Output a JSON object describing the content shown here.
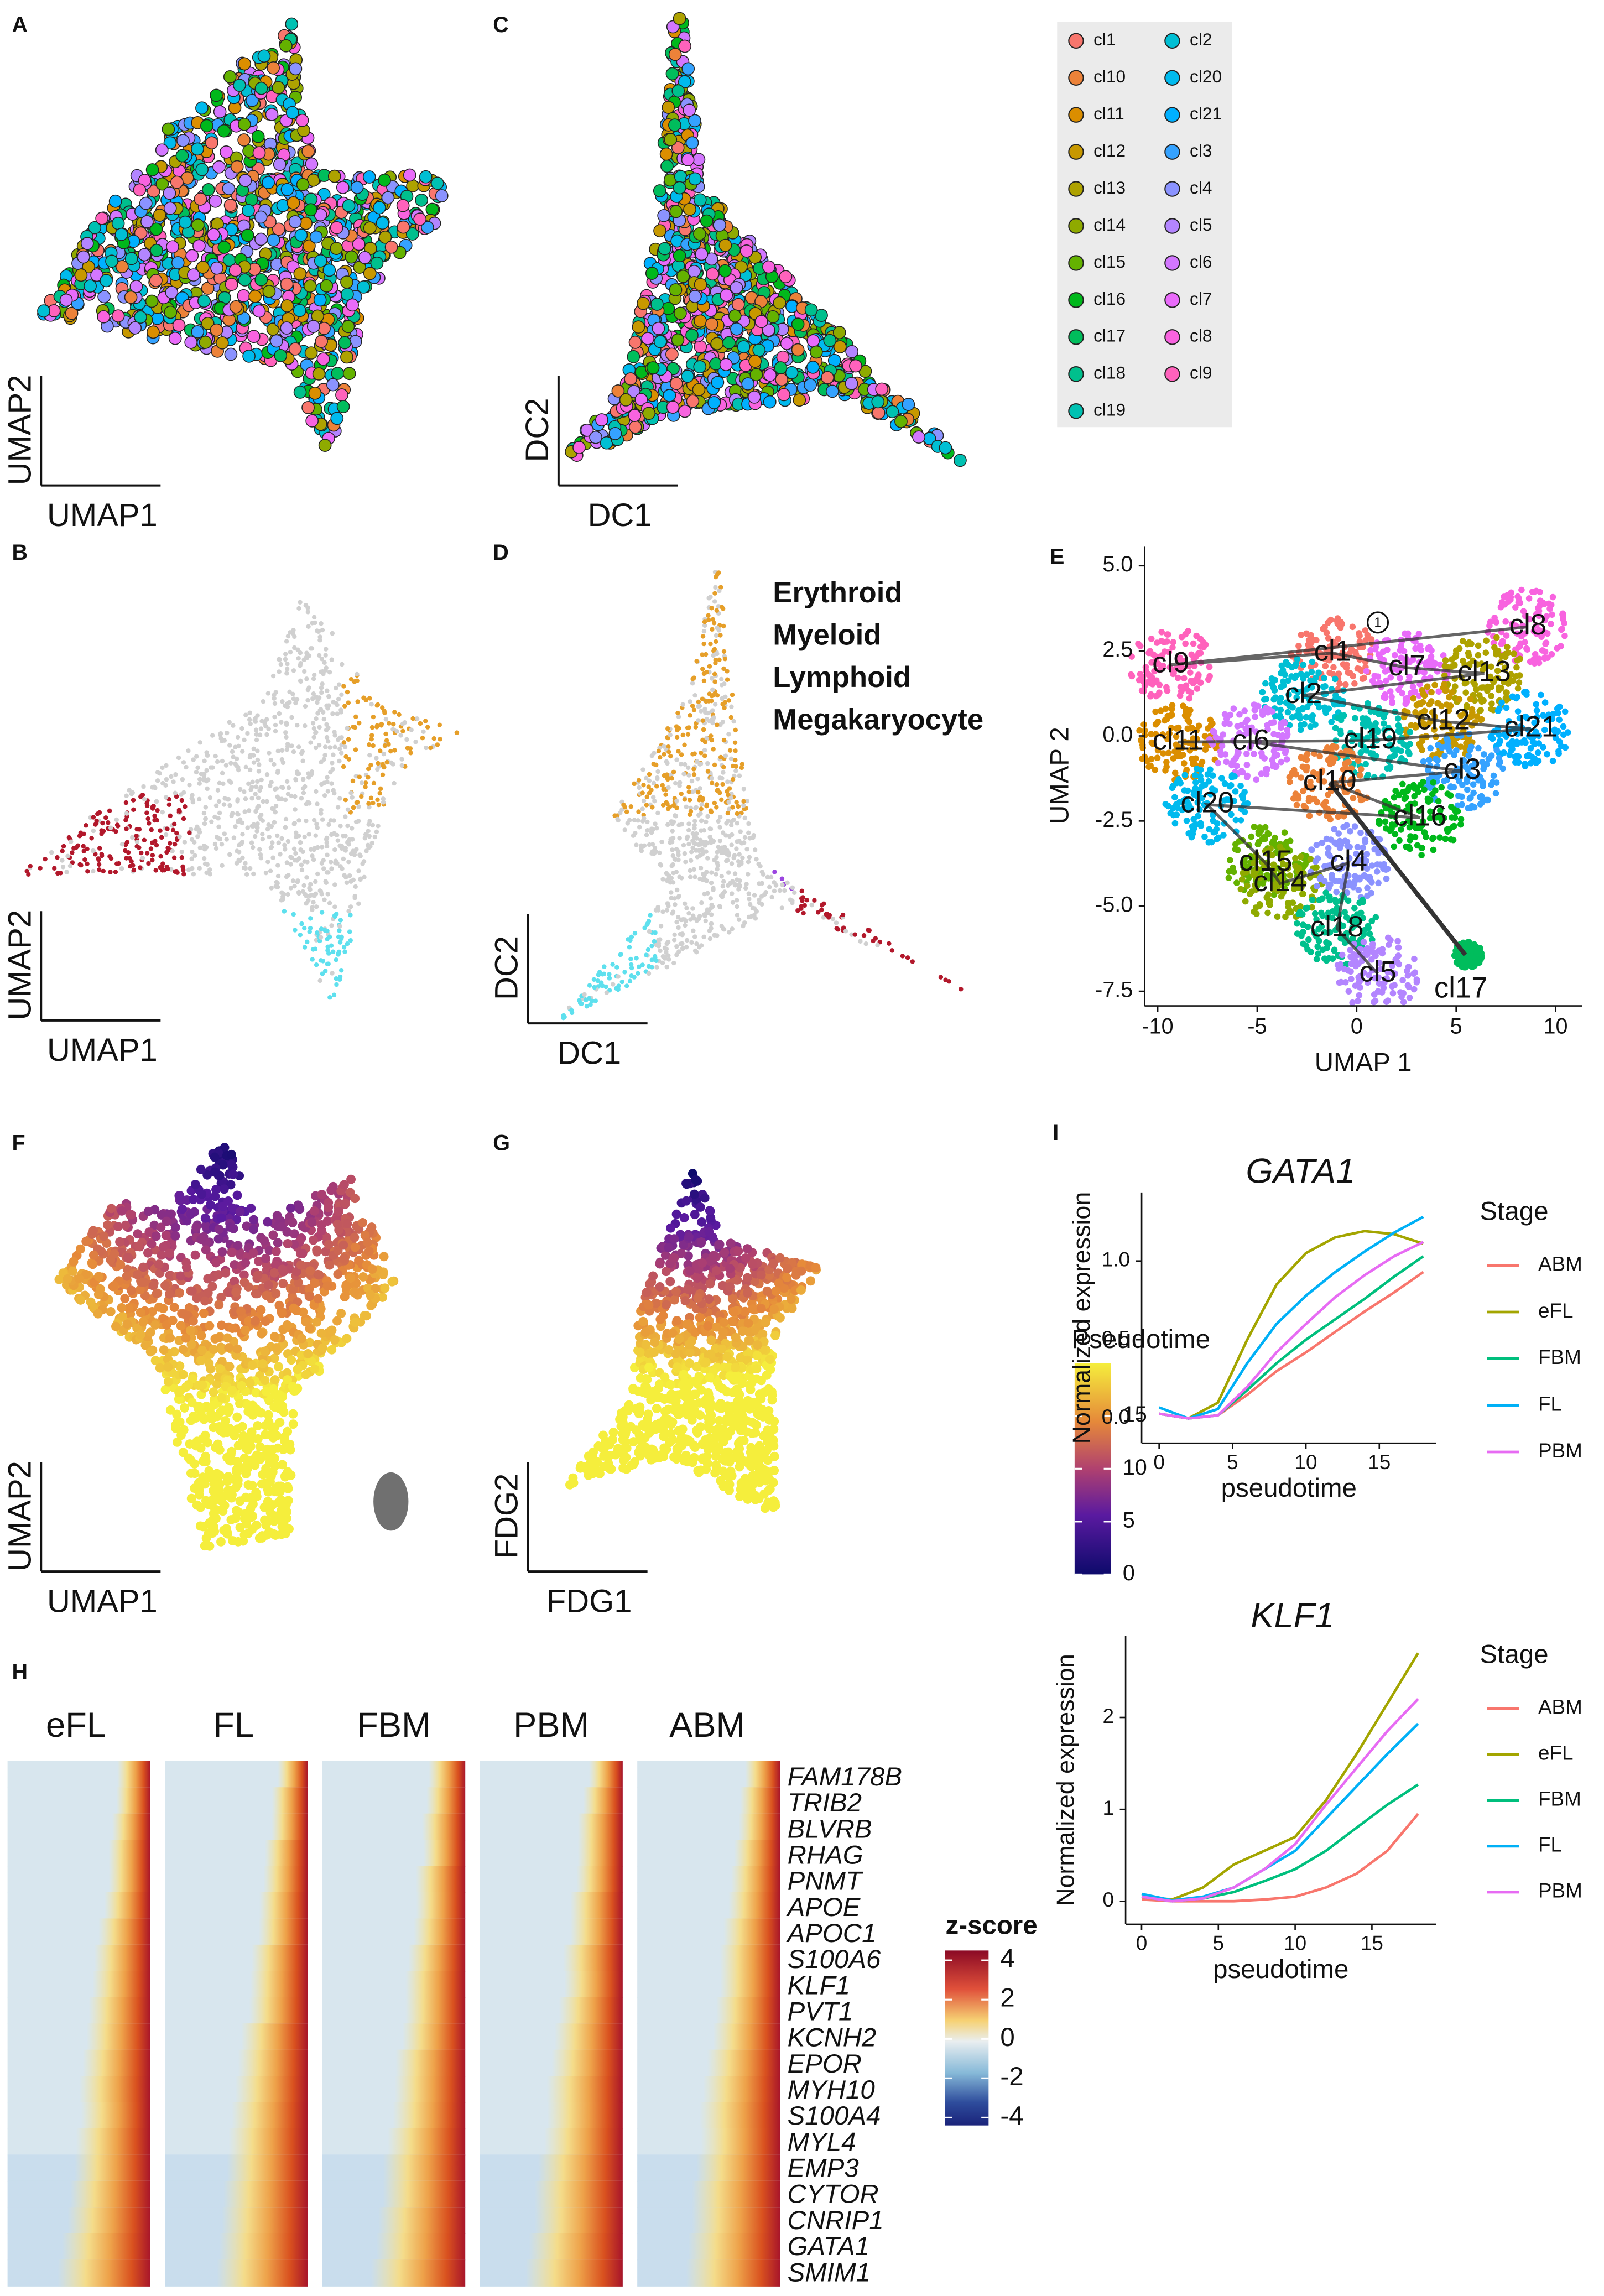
{
  "chart_data": [
    {
      "type": "scatter",
      "panel": "A",
      "xlabel": "UMAP1",
      "ylabel": "UMAP2"
    },
    {
      "type": "scatter",
      "panel": "C",
      "xlabel": "DC1",
      "ylabel": "DC2",
      "legend": [
        {
          "name": "cl1",
          "color": "#F8766D"
        },
        {
          "name": "cl10",
          "color": "#EC8239"
        },
        {
          "name": "cl11",
          "color": "#DB8E00"
        },
        {
          "name": "cl12",
          "color": "#C79800"
        },
        {
          "name": "cl13",
          "color": "#AEA200"
        },
        {
          "name": "cl14",
          "color": "#8FAA00"
        },
        {
          "name": "cl15",
          "color": "#64B200"
        },
        {
          "name": "cl16",
          "color": "#00B81B"
        },
        {
          "name": "cl17",
          "color": "#00BD5C"
        },
        {
          "name": "cl18",
          "color": "#00C08D"
        },
        {
          "name": "cl19",
          "color": "#00C1B2"
        },
        {
          "name": "cl2",
          "color": "#00BFD4"
        },
        {
          "name": "cl20",
          "color": "#00BAEE"
        },
        {
          "name": "cl21",
          "color": "#00B0FF"
        },
        {
          "name": "cl3",
          "color": "#35A2FF"
        },
        {
          "name": "cl4",
          "color": "#8B93FF"
        },
        {
          "name": "cl5",
          "color": "#B385FF"
        },
        {
          "name": "cl6",
          "color": "#D377FF"
        },
        {
          "name": "cl7",
          "color": "#E96BFA"
        },
        {
          "name": "cl8",
          "color": "#F863DF"
        },
        {
          "name": "cl9",
          "color": "#FF62BC"
        }
      ]
    },
    {
      "type": "scatter",
      "panel": "B",
      "xlabel": "UMAP1",
      "ylabel": "UMAP2"
    },
    {
      "type": "scatter",
      "panel": "D",
      "xlabel": "DC1",
      "ylabel": "DC2",
      "legend": [
        {
          "name": "Erythroid",
          "color": "#B2182B"
        },
        {
          "name": "Myeloid",
          "color": "#5EE0EE"
        },
        {
          "name": "Lymphoid",
          "color": "#E69F29"
        },
        {
          "name": "Megakaryocyte",
          "color": "#9B45E0"
        }
      ]
    },
    {
      "type": "scatter",
      "panel": "E",
      "xlabel": "UMAP 1",
      "ylabel": "UMAP 2",
      "xlim": [
        -10.66,
        11.32
      ],
      "ylim": [
        -7.93,
        5.56
      ],
      "xticks": [
        -10,
        -5,
        0,
        5,
        10
      ],
      "yticks": [
        -7.5,
        {
          "value": -5,
          "label": "-5.0"
        },
        -2.5,
        {
          "value": 0,
          "label": "0.0"
        },
        2.5,
        {
          "value": 5,
          "label": "5.0"
        }
      ],
      "annotations": [
        "cl8",
        "cl9",
        "cl1",
        "cl7",
        "cl13",
        "cl2",
        "cl12",
        "cl21",
        "cl19",
        "cl11",
        "cl6",
        "cl3",
        "cl10",
        "cl16",
        "cl20",
        "cl15",
        "cl14",
        "cl4",
        "cl18",
        "cl5",
        "cl17"
      ],
      "root_label": "1"
    },
    {
      "type": "scatter",
      "panel": "F",
      "xlabel": "UMAP1",
      "ylabel": "UMAP2"
    },
    {
      "type": "scatter",
      "panel": "G",
      "xlabel": "FDG1",
      "ylabel": "FDG2",
      "colorbar": {
        "title": "Pseudotime",
        "lim": [
          0,
          20
        ],
        "ticks": [
          0,
          5,
          10,
          15
        ]
      }
    },
    {
      "type": "heatmap",
      "panel": "H",
      "columns": [
        "eFL",
        "FL",
        "FBM",
        "PBM",
        "ABM"
      ],
      "rows": [
        "FAM178B",
        "TRIB2",
        "BLVRB",
        "RHAG",
        "PNMT",
        "APOE",
        "APOC1",
        "S100A6",
        "KLF1",
        "PVT1",
        "KCNH2",
        "EPOR",
        "MYH10",
        "S100A4",
        "MYL4",
        "EMP3",
        "CYTOR",
        "CNRIP1",
        "GATA1",
        "SMIM1"
      ],
      "colorbar": {
        "title": "z-score",
        "lim": [
          -4.4,
          4.5
        ],
        "ticks": [
          4,
          2,
          0,
          -2,
          -4
        ]
      }
    },
    {
      "type": "line",
      "panel": "I",
      "title": "GATA1",
      "xlabel": "pseudotime",
      "ylabel": "Normalized expression",
      "legend_title": "Stage",
      "x": [
        0,
        2,
        4,
        6,
        8,
        10,
        12,
        14,
        16,
        18
      ],
      "xlim": [
        -1.19,
        18.87
      ],
      "ylim": [
        -0.157,
        1.435
      ],
      "xticks": [
        0,
        5,
        10,
        15
      ],
      "yticks": [
        {
          "value": 0,
          "label": "0.0"
        },
        0.5,
        {
          "value": 1,
          "label": "1.0"
        }
      ],
      "series": [
        {
          "name": "ABM",
          "color": "#F8766D",
          "values": [
            0.03,
            0,
            0.02,
            0.15,
            0.3,
            0.42,
            0.55,
            0.68,
            0.8,
            0.93
          ]
        },
        {
          "name": "eFL",
          "color": "#A3A500",
          "values": [
            0.03,
            0,
            0.1,
            0.5,
            0.85,
            1.05,
            1.15,
            1.19,
            1.17,
            1.11
          ]
        },
        {
          "name": "FBM",
          "color": "#00BF7D",
          "values": [
            0.03,
            0,
            0.02,
            0.18,
            0.35,
            0.5,
            0.63,
            0.76,
            0.9,
            1.03
          ]
        },
        {
          "name": "FL",
          "color": "#00B0F6",
          "values": [
            0.07,
            0,
            0.06,
            0.35,
            0.6,
            0.78,
            0.93,
            1.06,
            1.18,
            1.28
          ]
        },
        {
          "name": "PBM",
          "color": "#E76BF3",
          "values": [
            0.03,
            0,
            0.02,
            0.2,
            0.42,
            0.6,
            0.77,
            0.91,
            1.03,
            1.12
          ]
        }
      ]
    },
    {
      "type": "line",
      "title": "KLF1",
      "xlabel": "pseudotime",
      "ylabel": "Normalized expression",
      "legend_title": "Stage",
      "x": [
        0,
        2,
        4,
        6,
        8,
        10,
        12,
        14,
        16,
        18
      ],
      "xlim": [
        -1.04,
        19.18
      ],
      "ylim": [
        -0.25,
        2.89
      ],
      "xticks": [
        0,
        5,
        10,
        15
      ],
      "yticks": [
        0,
        1,
        2
      ],
      "series": [
        {
          "name": "ABM",
          "color": "#F8766D",
          "values": [
            0.02,
            0,
            0,
            0,
            0.02,
            0.05,
            0.15,
            0.3,
            0.55,
            0.95
          ]
        },
        {
          "name": "eFL",
          "color": "#A3A500",
          "values": [
            0.05,
            0.02,
            0.15,
            0.4,
            0.55,
            0.7,
            1.1,
            1.6,
            2.15,
            2.7
          ]
        },
        {
          "name": "FBM",
          "color": "#00BF7D",
          "values": [
            0.05,
            0,
            0.03,
            0.1,
            0.22,
            0.35,
            0.55,
            0.8,
            1.05,
            1.27
          ]
        },
        {
          "name": "FL",
          "color": "#00B0F6",
          "values": [
            0.08,
            0.01,
            0.05,
            0.15,
            0.35,
            0.55,
            0.9,
            1.25,
            1.6,
            1.93
          ]
        },
        {
          "name": "PBM",
          "color": "#E76BF3",
          "values": [
            0.05,
            0,
            0.03,
            0.15,
            0.35,
            0.62,
            1.05,
            1.45,
            1.85,
            2.2
          ]
        }
      ]
    }
  ]
}
